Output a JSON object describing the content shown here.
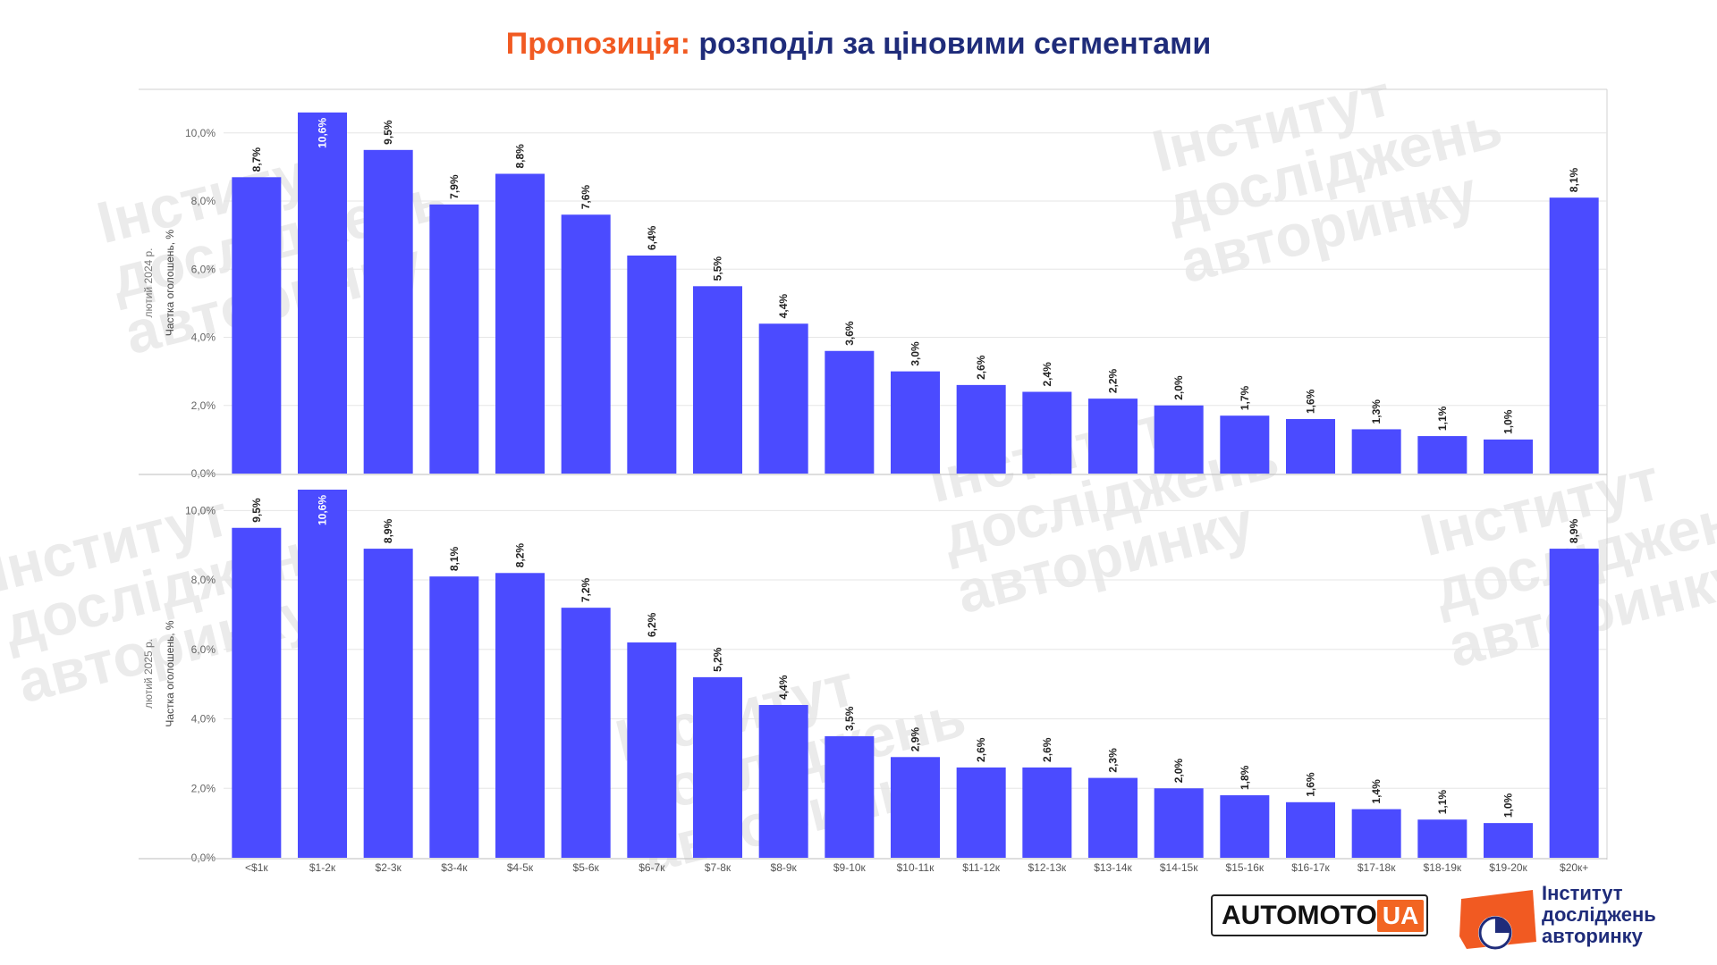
{
  "title": {
    "part1": "Пропозиція:",
    "part2": "розподіл за ціновими сегментами"
  },
  "logos": {
    "automoto_text": "AUTOMOTO",
    "automoto_ua": "UA",
    "institute_lines": [
      "Інститут",
      "досліджень",
      "авторинку"
    ]
  },
  "watermark_text": "Інститут\nдосліджень\nавторинку",
  "colors": {
    "bar": "#4b4bff",
    "title_accent": "#f15a22",
    "title_main": "#1f2c7a",
    "grid": "#e6e6e6"
  },
  "chart_data": [
    {
      "type": "bar",
      "ylabel_line1": "лютий 2024 р.",
      "ylabel_line2": "Частка оголошень, %",
      "ylim": [
        0,
        11.2
      ],
      "yticks": [
        0,
        2,
        4,
        6,
        8,
        10
      ],
      "ytick_labels": [
        "0,0%",
        "2,0%",
        "4,0%",
        "6,0%",
        "8,0%",
        "10,0%"
      ],
      "grid": true,
      "categories": [
        "<$1к",
        "$1-2к",
        "$2-3к",
        "$3-4к",
        "$4-5к",
        "$5-6к",
        "$6-7к",
        "$7-8к",
        "$8-9к",
        "$9-10к",
        "$10-11к",
        "$11-12к",
        "$12-13к",
        "$13-14к",
        "$14-15к",
        "$15-16к",
        "$16-17к",
        "$17-18к",
        "$18-19к",
        "$19-20к",
        "$20к+"
      ],
      "values": [
        8.7,
        10.6,
        9.5,
        7.9,
        8.8,
        7.6,
        6.4,
        5.5,
        4.4,
        3.6,
        3.0,
        2.6,
        2.4,
        2.2,
        2.0,
        1.7,
        1.6,
        1.3,
        1.1,
        1.0,
        8.1
      ],
      "value_labels": [
        "8,7%",
        "10,6%",
        "9,5%",
        "7,9%",
        "8,8%",
        "7,6%",
        "6,4%",
        "5,5%",
        "4,4%",
        "3,6%",
        "3,0%",
        "2,6%",
        "2,4%",
        "2,2%",
        "2,0%",
        "1,7%",
        "1,6%",
        "1,3%",
        "1,1%",
        "1,0%",
        "8,1%"
      ]
    },
    {
      "type": "bar",
      "ylabel_line1": "лютий 2025 р.",
      "ylabel_line2": "Частка оголошень, %",
      "ylim": [
        0,
        10.6
      ],
      "yticks": [
        0,
        2,
        4,
        6,
        8,
        10
      ],
      "ytick_labels": [
        "0,0%",
        "2,0%",
        "4,0%",
        "6,0%",
        "8,0%",
        "10,0%"
      ],
      "grid": true,
      "categories": [
        "<$1к",
        "$1-2к",
        "$2-3к",
        "$3-4к",
        "$4-5к",
        "$5-6к",
        "$6-7к",
        "$7-8к",
        "$8-9к",
        "$9-10к",
        "$10-11к",
        "$11-12к",
        "$12-13к",
        "$13-14к",
        "$14-15к",
        "$15-16к",
        "$16-17к",
        "$17-18к",
        "$18-19к",
        "$19-20к",
        "$20к+"
      ],
      "values": [
        9.5,
        10.6,
        8.9,
        8.1,
        8.2,
        7.2,
        6.2,
        5.2,
        4.4,
        3.5,
        2.9,
        2.6,
        2.6,
        2.3,
        2.0,
        1.8,
        1.6,
        1.4,
        1.1,
        1.0,
        8.9
      ],
      "value_labels": [
        "9,5%",
        "10,6%",
        "8,9%",
        "8,1%",
        "8,2%",
        "7,2%",
        "6,2%",
        "5,2%",
        "4,4%",
        "3,5%",
        "2,9%",
        "2,6%",
        "2,6%",
        "2,3%",
        "2,0%",
        "1,8%",
        "1,6%",
        "1,4%",
        "1,1%",
        "1,0%",
        "8,9%"
      ]
    }
  ]
}
